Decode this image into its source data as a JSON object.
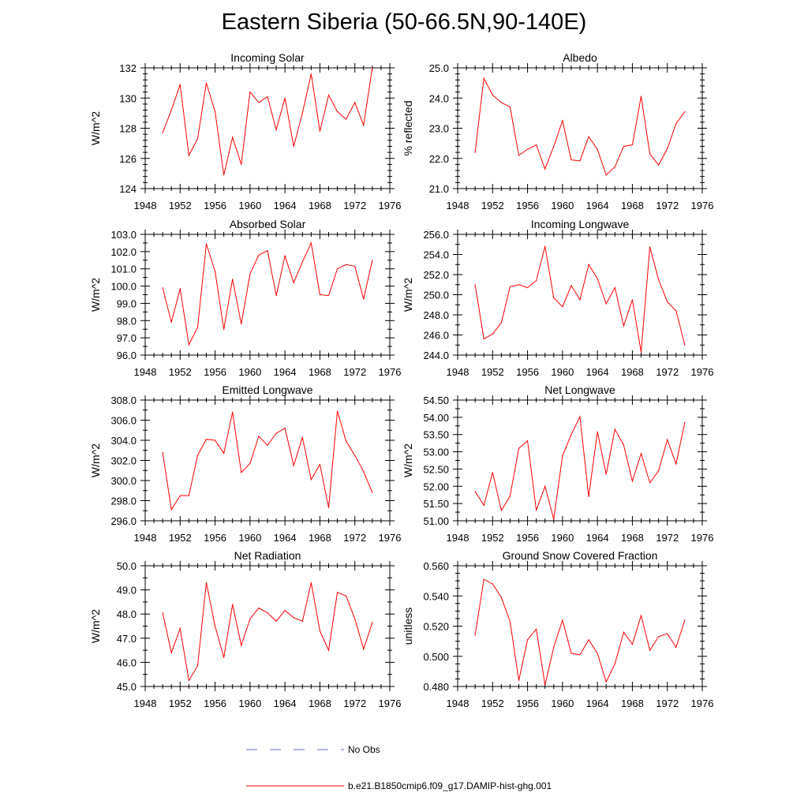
{
  "page": {
    "title": "Eastern Siberia (50-66.5N,90-140E)"
  },
  "colors": {
    "model_line": "#ff0000",
    "obs_line": "#6a6ad8",
    "axis": "#000000"
  },
  "legend": {
    "obs_label": "No Obs",
    "model_label": "b.e21.B1850cmip6.f09_g17.DAMIP-hist-ghg.001"
  },
  "chart_data": [
    {
      "type": "line",
      "title": "Incoming Solar",
      "ylabel": "W/m^2",
      "xlim": [
        1948,
        1976
      ],
      "xticks": [
        1948,
        1952,
        1956,
        1960,
        1964,
        1968,
        1972,
        1976
      ],
      "ylim": [
        124,
        132
      ],
      "yticks": [
        124,
        126,
        128,
        130,
        132
      ],
      "ydecimals": 0,
      "yminor": 4,
      "x": [
        1950,
        1951,
        1952,
        1953,
        1954,
        1955,
        1956,
        1957,
        1958,
        1959,
        1960,
        1961,
        1962,
        1963,
        1964,
        1965,
        1966,
        1967,
        1968,
        1969,
        1970,
        1971,
        1972,
        1973,
        1974
      ],
      "series": [
        {
          "name": "b.e21.B1850cmip6.f09_g17.DAMIP-hist-ghg.001",
          "values": [
            127.7,
            129.2,
            130.9,
            126.2,
            127.3,
            131.0,
            129.1,
            124.9,
            127.4,
            125.6,
            130.4,
            129.7,
            130.1,
            127.9,
            130.0,
            126.8,
            129.0,
            131.6,
            127.8,
            130.2,
            129.1,
            128.6,
            129.7,
            128.2,
            132.0
          ]
        }
      ]
    },
    {
      "type": "line",
      "title": "Albedo",
      "ylabel": "% reflected",
      "xlim": [
        1948,
        1976
      ],
      "xticks": [
        1948,
        1952,
        1956,
        1960,
        1964,
        1968,
        1972,
        1976
      ],
      "ylim": [
        21.0,
        25.0
      ],
      "yticks": [
        21.0,
        22.0,
        23.0,
        24.0,
        25.0
      ],
      "ydecimals": 1,
      "yminor": 4,
      "x": [
        1950,
        1951,
        1952,
        1953,
        1954,
        1955,
        1956,
        1957,
        1958,
        1959,
        1960,
        1961,
        1962,
        1963,
        1964,
        1965,
        1966,
        1967,
        1968,
        1969,
        1970,
        1971,
        1972,
        1973,
        1974
      ],
      "series": [
        {
          "name": "b.e21.B1850cmip6.f09_g17.DAMIP-hist-ghg.001",
          "values": [
            22.2,
            24.65,
            24.1,
            23.85,
            23.7,
            22.1,
            22.3,
            22.45,
            21.65,
            22.4,
            23.25,
            21.95,
            21.92,
            22.72,
            22.3,
            21.45,
            21.72,
            22.4,
            22.45,
            24.06,
            22.15,
            21.78,
            22.32,
            23.15,
            23.55
          ]
        }
      ]
    },
    {
      "type": "line",
      "title": "Absorbed Solar",
      "ylabel": "W/m^2",
      "xlim": [
        1948,
        1976
      ],
      "xticks": [
        1948,
        1952,
        1956,
        1960,
        1964,
        1968,
        1972,
        1976
      ],
      "ylim": [
        96.0,
        103.0
      ],
      "yticks": [
        96.0,
        97.0,
        98.0,
        99.0,
        100.0,
        101.0,
        102.0,
        103.0
      ],
      "ydecimals": 1,
      "yminor": 1,
      "x": [
        1950,
        1951,
        1952,
        1953,
        1954,
        1955,
        1956,
        1957,
        1958,
        1959,
        1960,
        1961,
        1962,
        1963,
        1964,
        1965,
        1966,
        1967,
        1968,
        1969,
        1970,
        1971,
        1972,
        1973,
        1974
      ],
      "series": [
        {
          "name": "b.e21.B1850cmip6.f09_g17.DAMIP-hist-ghg.001",
          "values": [
            99.9,
            97.9,
            99.85,
            96.6,
            97.6,
            102.45,
            100.85,
            97.5,
            100.4,
            97.8,
            100.7,
            101.8,
            102.05,
            99.45,
            101.75,
            100.2,
            101.4,
            102.5,
            99.5,
            99.45,
            101.0,
            101.25,
            101.15,
            99.25,
            101.5
          ]
        }
      ]
    },
    {
      "type": "line",
      "title": "Incoming Longwave",
      "ylabel": "W/m^2",
      "xlim": [
        1948,
        1976
      ],
      "xticks": [
        1948,
        1952,
        1956,
        1960,
        1964,
        1968,
        1972,
        1976
      ],
      "ylim": [
        244.0,
        256.0
      ],
      "yticks": [
        244.0,
        246.0,
        248.0,
        250.0,
        252.0,
        254.0,
        256.0
      ],
      "ydecimals": 1,
      "yminor": 1,
      "x": [
        1950,
        1951,
        1952,
        1953,
        1954,
        1955,
        1956,
        1957,
        1958,
        1959,
        1960,
        1961,
        1962,
        1963,
        1964,
        1965,
        1966,
        1967,
        1968,
        1969,
        1970,
        1971,
        1972,
        1973,
        1974
      ],
      "series": [
        {
          "name": "b.e21.B1850cmip6.f09_g17.DAMIP-hist-ghg.001",
          "values": [
            251.0,
            245.6,
            246.1,
            247.2,
            250.8,
            251.0,
            250.7,
            251.4,
            254.8,
            249.7,
            248.8,
            250.9,
            249.5,
            253.0,
            251.6,
            249.1,
            250.7,
            246.9,
            249.5,
            244.3,
            254.75,
            251.5,
            249.3,
            248.4,
            245.0
          ]
        }
      ]
    },
    {
      "type": "line",
      "title": "Emitted Longwave",
      "ylabel": "W/m^2",
      "xlim": [
        1948,
        1976
      ],
      "xticks": [
        1948,
        1952,
        1956,
        1960,
        1964,
        1968,
        1972,
        1976
      ],
      "ylim": [
        296.0,
        308.0
      ],
      "yticks": [
        296.0,
        298.0,
        300.0,
        302.0,
        304.0,
        306.0,
        308.0
      ],
      "ydecimals": 1,
      "yminor": 1,
      "x": [
        1950,
        1951,
        1952,
        1953,
        1954,
        1955,
        1956,
        1957,
        1958,
        1959,
        1960,
        1961,
        1962,
        1963,
        1964,
        1965,
        1966,
        1967,
        1968,
        1969,
        1970,
        1971,
        1972,
        1973,
        1974
      ],
      "series": [
        {
          "name": "b.e21.B1850cmip6.f09_g17.DAMIP-hist-ghg.001",
          "values": [
            302.8,
            297.1,
            298.5,
            298.5,
            302.5,
            304.1,
            304.0,
            302.7,
            306.8,
            300.8,
            301.7,
            304.4,
            303.5,
            304.7,
            305.2,
            301.5,
            304.3,
            300.1,
            301.6,
            297.3,
            306.9,
            303.9,
            302.5,
            300.9,
            298.8
          ]
        }
      ]
    },
    {
      "type": "line",
      "title": "Net Longwave",
      "ylabel": "W/m^2",
      "xlim": [
        1948,
        1976
      ],
      "xticks": [
        1948,
        1952,
        1956,
        1960,
        1964,
        1968,
        1972,
        1976
      ],
      "ylim": [
        51.0,
        54.5
      ],
      "yticks": [
        51.0,
        51.5,
        52.0,
        52.5,
        53.0,
        53.5,
        54.0,
        54.5
      ],
      "ydecimals": 2,
      "yminor": 1,
      "x": [
        1950,
        1951,
        1952,
        1953,
        1954,
        1955,
        1956,
        1957,
        1958,
        1959,
        1960,
        1961,
        1962,
        1963,
        1964,
        1965,
        1966,
        1967,
        1968,
        1969,
        1970,
        1971,
        1972,
        1973,
        1974
      ],
      "series": [
        {
          "name": "b.e21.B1850cmip6.f09_g17.DAMIP-hist-ghg.001",
          "values": [
            51.85,
            51.45,
            52.4,
            51.3,
            51.72,
            53.1,
            53.32,
            51.3,
            52.0,
            51.05,
            52.88,
            53.5,
            54.02,
            51.7,
            53.58,
            52.35,
            53.65,
            53.2,
            52.15,
            52.95,
            52.1,
            52.45,
            53.35,
            52.65,
            53.85
          ]
        }
      ]
    },
    {
      "type": "line",
      "title": "Net Radiation",
      "ylabel": "W/m^2",
      "xlim": [
        1948,
        1976
      ],
      "xticks": [
        1948,
        1952,
        1956,
        1960,
        1964,
        1968,
        1972,
        1976
      ],
      "ylim": [
        45.0,
        50.0
      ],
      "yticks": [
        45.0,
        46.0,
        47.0,
        48.0,
        49.0,
        50.0
      ],
      "ydecimals": 1,
      "yminor": 1,
      "x": [
        1950,
        1951,
        1952,
        1953,
        1954,
        1955,
        1956,
        1957,
        1958,
        1959,
        1960,
        1961,
        1962,
        1963,
        1964,
        1965,
        1966,
        1967,
        1968,
        1969,
        1970,
        1971,
        1972,
        1973,
        1974
      ],
      "series": [
        {
          "name": "b.e21.B1850cmip6.f09_g17.DAMIP-hist-ghg.001",
          "values": [
            48.05,
            46.4,
            47.4,
            45.25,
            45.85,
            49.3,
            47.5,
            46.2,
            48.4,
            46.7,
            47.8,
            48.25,
            48.05,
            47.7,
            48.15,
            47.85,
            47.7,
            49.3,
            47.3,
            46.5,
            48.9,
            48.75,
            47.8,
            46.55,
            47.65
          ]
        }
      ]
    },
    {
      "type": "line",
      "title": "Ground Snow Covered Fraction",
      "ylabel": "unitless",
      "xlim": [
        1948,
        1976
      ],
      "xticks": [
        1948,
        1952,
        1956,
        1960,
        1964,
        1968,
        1972,
        1976
      ],
      "ylim": [
        0.48,
        0.56
      ],
      "yticks": [
        0.48,
        0.5,
        0.52,
        0.54,
        0.56
      ],
      "ydecimals": 3,
      "yminor": 3,
      "x": [
        1950,
        1951,
        1952,
        1953,
        1954,
        1955,
        1956,
        1957,
        1958,
        1959,
        1960,
        1961,
        1962,
        1963,
        1964,
        1965,
        1966,
        1967,
        1968,
        1969,
        1970,
        1971,
        1972,
        1973,
        1974
      ],
      "series": [
        {
          "name": "b.e21.B1850cmip6.f09_g17.DAMIP-hist-ghg.001",
          "values": [
            0.514,
            0.551,
            0.548,
            0.539,
            0.523,
            0.484,
            0.511,
            0.518,
            0.481,
            0.506,
            0.524,
            0.502,
            0.501,
            0.511,
            0.502,
            0.483,
            0.495,
            0.516,
            0.508,
            0.527,
            0.504,
            0.513,
            0.515,
            0.506,
            0.524
          ]
        }
      ]
    }
  ]
}
